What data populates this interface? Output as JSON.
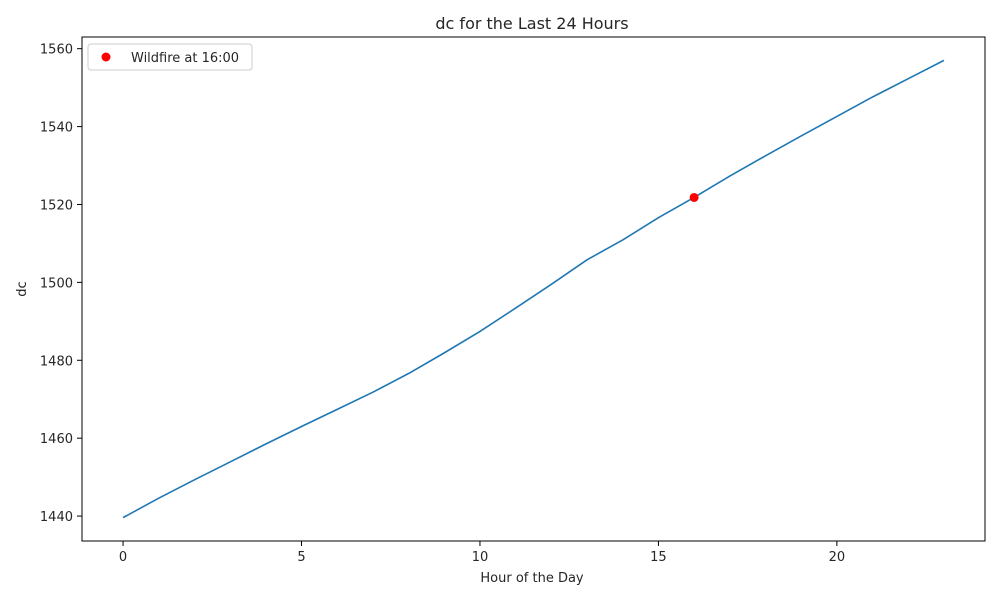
{
  "chart_data": {
    "type": "line",
    "title": "dc for the Last 24 Hours",
    "xlabel": "Hour of the Day",
    "ylabel": "dc",
    "xlim": [
      -1.15,
      24.15
    ],
    "ylim": [
      1433.6,
      1563.0
    ],
    "xticks": [
      0,
      5,
      10,
      15,
      20
    ],
    "yticks": [
      1440,
      1460,
      1480,
      1500,
      1520,
      1540,
      1560
    ],
    "grid": false,
    "legend_position": "upper-left",
    "series": [
      {
        "type": "line",
        "color": "#1f77b4",
        "x": [
          0,
          1,
          2,
          3,
          4,
          5,
          6,
          7,
          8,
          9,
          10,
          11,
          12,
          13,
          14,
          15,
          16,
          17,
          18,
          19,
          20,
          21,
          22,
          23
        ],
        "y": [
          1439.6,
          1444.6,
          1449.3,
          1453.9,
          1458.5,
          1463.0,
          1467.4,
          1471.8,
          1476.6,
          1481.9,
          1487.4,
          1493.4,
          1499.5,
          1505.8,
          1510.9,
          1516.6,
          1521.8,
          1527.3,
          1532.5,
          1537.6,
          1542.6,
          1547.6,
          1552.3,
          1557.0
        ]
      },
      {
        "type": "scatter",
        "name": "Wildfire at 16:00",
        "color": "#ff0000",
        "x": [
          16
        ],
        "y": [
          1521.8
        ]
      }
    ]
  }
}
